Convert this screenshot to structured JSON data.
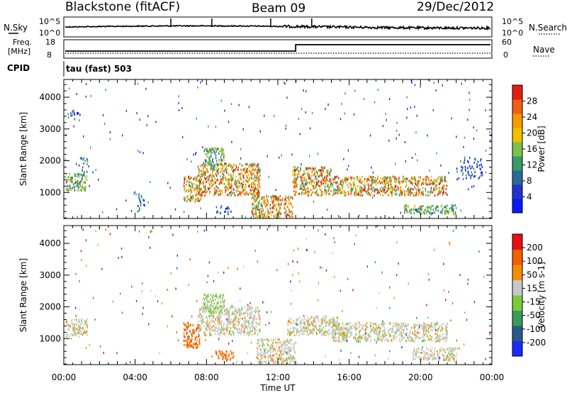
{
  "header": {
    "station": "Blackstone (fitACF)",
    "beam": "Beam 09",
    "date": "29/Dec/2012"
  },
  "sky_panel": {
    "left_label": "N.Sky",
    "left_ticks": [
      "10^5",
      "10^0"
    ],
    "right_ticks": [
      "10^5",
      "10^0"
    ],
    "right_label": "N.Search"
  },
  "freq_panel": {
    "left_label_1": "Freq.",
    "left_label_2": "[MHz]",
    "left_ticks": [
      "18",
      "8"
    ],
    "right_ticks": [
      "60",
      "0"
    ],
    "right_label": "Nave",
    "step_hour": 13.0
  },
  "cpid": {
    "label": "CPID",
    "mode": "tau (fast) 503"
  },
  "chart_data": [
    {
      "type": "heatmap",
      "name": "power",
      "ylabel": "Slant Range [km]",
      "y_ticks": [
        1000,
        2000,
        3000,
        4000
      ],
      "ylim": [
        180,
        4560
      ],
      "xlim": [
        0,
        24
      ],
      "colorbar": {
        "label": "Power [dB]",
        "ticks": [
          "4",
          "8",
          "12",
          "16",
          "20",
          "24",
          "28"
        ],
        "colors": [
          "#0a1aff",
          "#2233cc",
          "#2a6a9a",
          "#3a9a6a",
          "#7ac24a",
          "#f0c000",
          "#f59a00",
          "#f06010",
          "#e02010"
        ]
      },
      "scatter_regions": [
        {
          "t": [
            0.1,
            1.3
          ],
          "r": [
            1050,
            1600
          ],
          "level": "mid"
        },
        {
          "t": [
            0.8,
            1.3
          ],
          "r": [
            1600,
            2100
          ],
          "level": "low"
        },
        {
          "t": [
            0.2,
            1.0
          ],
          "r": [
            3300,
            3600
          ],
          "level": "low"
        },
        {
          "t": [
            4.0,
            4.5
          ],
          "r": [
            400,
            1000
          ],
          "level": "low"
        },
        {
          "t": [
            6.7,
            7.7
          ],
          "r": [
            700,
            1500
          ],
          "level": "high"
        },
        {
          "t": [
            7.5,
            11.0
          ],
          "r": [
            900,
            1900
          ],
          "level": "high"
        },
        {
          "t": [
            7.8,
            9.0
          ],
          "r": [
            1800,
            2400
          ],
          "level": "mid"
        },
        {
          "t": [
            8.5,
            9.5
          ],
          "r": [
            300,
            600
          ],
          "level": "low"
        },
        {
          "t": [
            10.5,
            12.8
          ],
          "r": [
            200,
            900
          ],
          "level": "high"
        },
        {
          "t": [
            12.8,
            15.0
          ],
          "r": [
            900,
            1800
          ],
          "level": "high"
        },
        {
          "t": [
            15.0,
            21.5
          ],
          "r": [
            900,
            1500
          ],
          "level": "high"
        },
        {
          "t": [
            19.0,
            22.0
          ],
          "r": [
            300,
            600
          ],
          "level": "mid"
        },
        {
          "t": [
            22.0,
            23.5
          ],
          "r": [
            1400,
            2100
          ],
          "level": "low"
        }
      ]
    },
    {
      "type": "heatmap",
      "name": "velocity",
      "ylabel": "Slant Range [km]",
      "y_ticks": [
        1000,
        2000,
        3000,
        4000
      ],
      "ylim": [
        180,
        4560
      ],
      "xlim": [
        0,
        24
      ],
      "colorbar": {
        "label": "Velocity [m s-1]",
        "ticks": [
          "200",
          "100",
          "50",
          "15",
          "-15",
          "-50",
          "-100",
          "-200"
        ],
        "colors": [
          "#1a2aff",
          "#2a5a8a",
          "#3a9a5a",
          "#7acc3a",
          "#c8c8c8",
          "#f09000",
          "#f06000",
          "#e81010"
        ]
      },
      "scatter_regions": [
        {
          "t": [
            0.1,
            1.3
          ],
          "r": [
            1050,
            1600
          ],
          "level": "grey"
        },
        {
          "t": [
            6.7,
            7.6
          ],
          "r": [
            700,
            1500
          ],
          "level": "orange"
        },
        {
          "t": [
            7.5,
            11.0
          ],
          "r": [
            1100,
            2000
          ],
          "level": "grey"
        },
        {
          "t": [
            7.8,
            9.0
          ],
          "r": [
            1800,
            2400
          ],
          "level": "green"
        },
        {
          "t": [
            8.5,
            9.5
          ],
          "r": [
            300,
            600
          ],
          "level": "orange"
        },
        {
          "t": [
            10.8,
            13.0
          ],
          "r": [
            200,
            1000
          ],
          "level": "grey"
        },
        {
          "t": [
            12.5,
            15.5
          ],
          "r": [
            1100,
            1700
          ],
          "level": "grey"
        },
        {
          "t": [
            15.0,
            21.5
          ],
          "r": [
            900,
            1500
          ],
          "level": "grey"
        },
        {
          "t": [
            19.5,
            22.0
          ],
          "r": [
            300,
            700
          ],
          "level": "grey"
        }
      ]
    }
  ],
  "x_axis": {
    "ticks": [
      "00:00",
      "04:00",
      "08:00",
      "12:00",
      "16:00",
      "20:00",
      "00:00"
    ],
    "label": "Time UT"
  }
}
